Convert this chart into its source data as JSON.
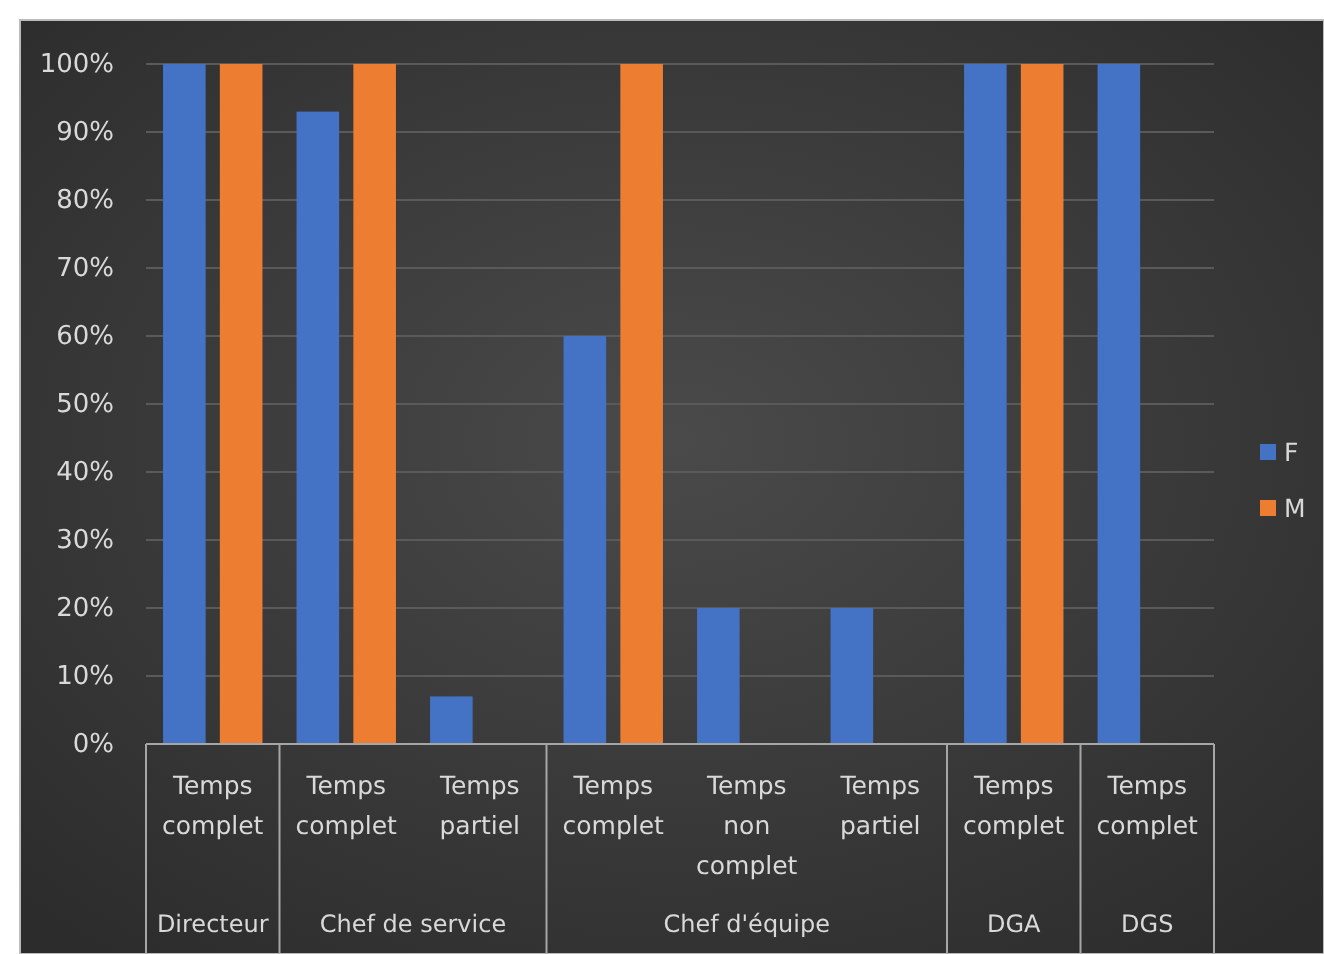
{
  "chart_data": {
    "type": "bar",
    "categories": [
      "Temps complet",
      "Temps complet",
      "Temps partiel",
      "Temps complet",
      "Temps non complet",
      "Temps partiel",
      "Temps complet",
      "Temps complet"
    ],
    "series": [
      {
        "name": "F",
        "color": "#4472c4",
        "values": [
          100,
          93,
          7,
          60,
          20,
          20,
          100,
          100
        ]
      },
      {
        "name": "M",
        "color": "#ed7d31",
        "values": [
          100,
          100,
          null,
          100,
          null,
          null,
          100,
          null
        ]
      }
    ],
    "annotations": [
      "Directeur",
      "Chef de service",
      "Chef d'équipe",
      "DGA",
      "DGS"
    ],
    "ylim": [
      0,
      100
    ],
    "yticks": [
      {
        "value": 0,
        "label": "0%"
      },
      {
        "value": 10,
        "label": "10%"
      },
      {
        "value": 20,
        "label": "20%"
      },
      {
        "value": 30,
        "label": "30%"
      },
      {
        "value": 40,
        "label": "40%"
      },
      {
        "value": 50,
        "label": "50%"
      },
      {
        "value": 60,
        "label": "60%"
      },
      {
        "value": 70,
        "label": "70%"
      },
      {
        "value": 80,
        "label": "80%"
      },
      {
        "value": 90,
        "label": "90%"
      },
      {
        "value": 100,
        "label": "100%"
      }
    ],
    "grid": "y",
    "legend": "right"
  }
}
